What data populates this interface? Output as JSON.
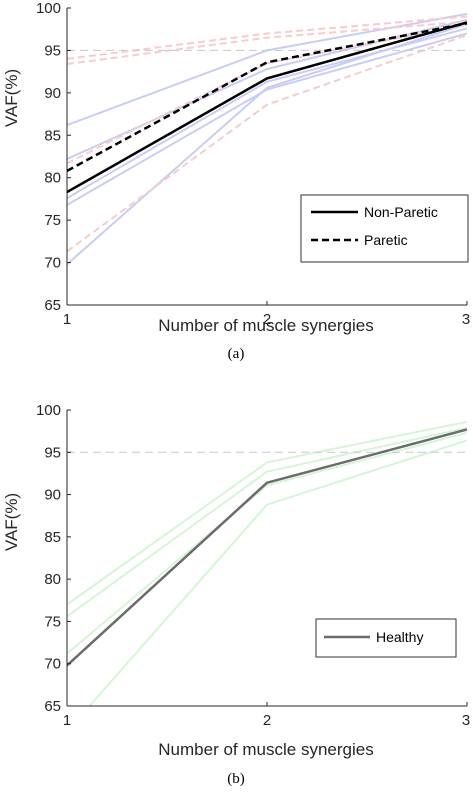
{
  "chart_data": [
    {
      "type": "line",
      "caption": "(a)",
      "xlabel": "Number of muscle synergies",
      "ylabel": "VAF(%)",
      "x": [
        1,
        2,
        3
      ],
      "xlim": [
        1,
        3
      ],
      "ylim": [
        65,
        100
      ],
      "xticks": [
        "1",
        "2",
        "3"
      ],
      "yticks": [
        "65",
        "70",
        "75",
        "80",
        "85",
        "90",
        "95",
        "100"
      ],
      "threshold": 95,
      "grid": false,
      "legend_position": "lower-right",
      "series": [
        {
          "name": "Non-Paretic",
          "style": "solid",
          "color": "#000000",
          "values": [
            78.3,
            91.7,
            98.3
          ]
        },
        {
          "name": "Paretic",
          "style": "dashed",
          "color": "#000000",
          "values": [
            80.8,
            93.6,
            98.2
          ]
        }
      ],
      "individual_series": [
        {
          "style": "solid",
          "color": "#c9cdf5",
          "values": [
            86.2,
            95.0,
            99.3
          ]
        },
        {
          "style": "solid",
          "color": "#c9cdf5",
          "values": [
            82.2,
            92.8,
            98.6
          ]
        },
        {
          "style": "solid",
          "color": "#c9cdf5",
          "values": [
            77.6,
            91.3,
            97.6
          ]
        },
        {
          "style": "solid",
          "color": "#c9cdf5",
          "values": [
            76.8,
            90.4,
            97.0
          ]
        },
        {
          "style": "solid",
          "color": "#c9cdf5",
          "values": [
            69.8,
            90.6,
            98.1
          ]
        },
        {
          "style": "dashed",
          "color": "#f6cccc",
          "values": [
            93.4,
            96.5,
            98.4
          ]
        },
        {
          "style": "dashed",
          "color": "#f6cccc",
          "values": [
            94.0,
            97.0,
            99.0
          ]
        },
        {
          "style": "dashed",
          "color": "#f6cccc",
          "values": [
            81.7,
            93.5,
            98.0
          ]
        },
        {
          "style": "dashed",
          "color": "#f6cccc",
          "values": [
            71.3,
            88.6,
            96.8
          ]
        }
      ]
    },
    {
      "type": "line",
      "caption": "(b)",
      "xlabel": "Number of muscle synergies",
      "ylabel": "VAF(%)",
      "x": [
        1,
        2,
        3
      ],
      "xlim": [
        1,
        3
      ],
      "ylim": [
        65,
        100
      ],
      "xticks": [
        "1",
        "2",
        "3"
      ],
      "yticks": [
        "65",
        "70",
        "75",
        "80",
        "85",
        "90",
        "95",
        "100"
      ],
      "threshold": 95,
      "grid": false,
      "legend_position": "lower-right",
      "series": [
        {
          "name": "Healthy",
          "style": "solid",
          "color": "#6b6b6b",
          "values": [
            69.8,
            91.4,
            97.7
          ]
        }
      ],
      "individual_series": [
        {
          "style": "solid",
          "color": "#d6f5d6",
          "values": [
            77.0,
            93.8,
            98.6
          ]
        },
        {
          "style": "solid",
          "color": "#d6f5d6",
          "values": [
            75.6,
            92.7,
            97.9
          ]
        },
        {
          "style": "solid",
          "color": "#d6f5d6",
          "values": [
            71.2,
            91.1,
            97.3
          ]
        },
        {
          "style": "solid",
          "color": "#d6f5d6",
          "values": [
            62.0,
            88.8,
            96.4
          ]
        }
      ]
    }
  ]
}
